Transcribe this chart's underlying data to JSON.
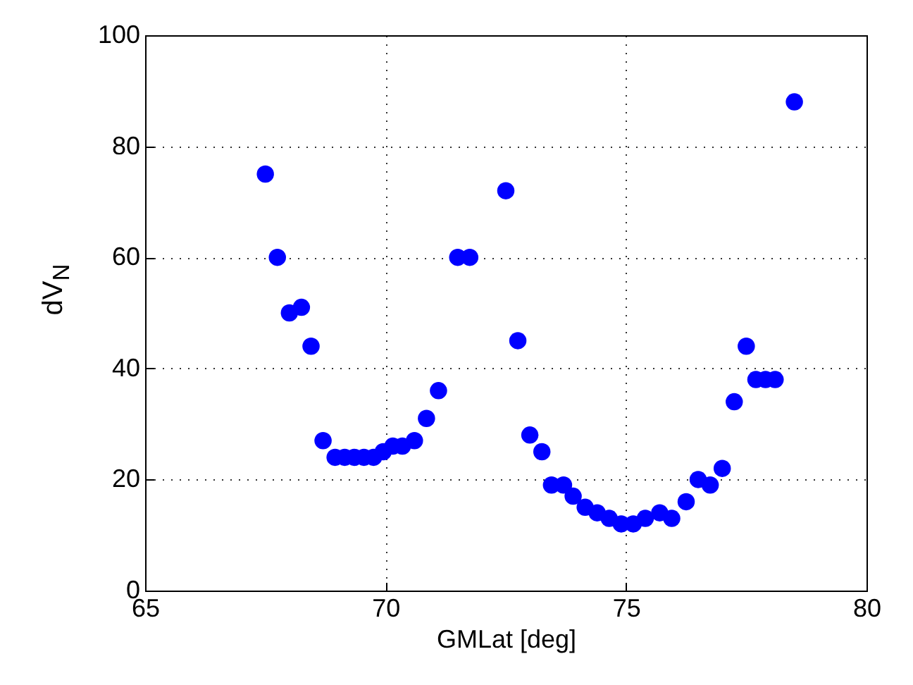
{
  "chart_data": {
    "type": "scatter",
    "xlabel": "GMLat [deg]",
    "ylabel": "dV$_{N}$",
    "x": [
      67.5,
      67.75,
      68.0,
      68.25,
      68.45,
      68.7,
      68.95,
      69.15,
      69.35,
      69.55,
      69.75,
      69.95,
      70.15,
      70.35,
      70.6,
      70.85,
      71.1,
      71.5,
      71.75,
      72.5,
      72.75,
      73.0,
      73.25,
      73.45,
      73.7,
      73.9,
      74.15,
      74.4,
      74.65,
      74.9,
      75.15,
      75.4,
      75.7,
      75.95,
      76.25,
      76.5,
      76.75,
      77.0,
      77.25,
      77.5,
      77.7,
      77.9,
      78.1,
      78.5
    ],
    "series": [
      {
        "color": "#0000ff",
        "values": [
          75,
          60,
          50,
          51,
          44,
          27,
          24,
          24,
          24,
          24,
          24,
          25,
          26,
          26,
          27,
          31,
          36,
          60,
          60,
          72,
          45,
          28,
          25,
          19,
          19,
          17,
          15,
          14,
          13,
          12,
          12,
          13,
          14,
          13,
          16,
          20,
          19,
          22,
          34,
          44,
          38,
          38,
          38,
          88
        ]
      }
    ],
    "xlim": [
      65,
      80
    ],
    "xticks": [
      65,
      70,
      75,
      80
    ],
    "ylim": [
      0,
      100
    ],
    "yticks": [
      0,
      20,
      40,
      60,
      80,
      100
    ],
    "grid": true,
    "marker": "circle"
  }
}
